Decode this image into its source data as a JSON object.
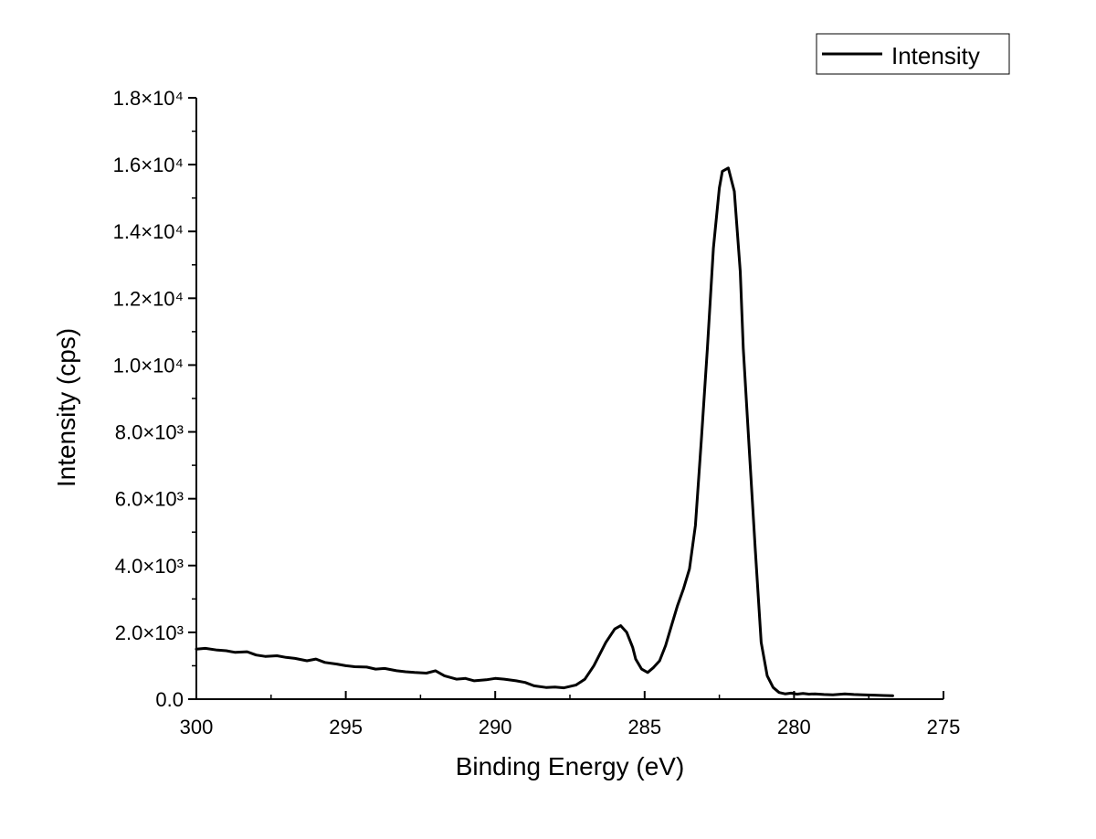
{
  "chart_data": {
    "type": "line",
    "xlabel": "Binding Energy (eV)",
    "ylabel": "Intensity (cps)",
    "xlim": [
      300,
      275
    ],
    "ylim": [
      0,
      18000
    ],
    "x_reversed": true,
    "grid": false,
    "legend_position": "top-right",
    "x_ticks": [
      {
        "value": 300,
        "label": "300"
      },
      {
        "value": 295,
        "label": "295"
      },
      {
        "value": 290,
        "label": "290"
      },
      {
        "value": 285,
        "label": "285"
      },
      {
        "value": 280,
        "label": "280"
      },
      {
        "value": 275,
        "label": "275"
      }
    ],
    "y_ticks": [
      {
        "value": 0,
        "label": "0.0"
      },
      {
        "value": 2000,
        "label": "2.0×10³"
      },
      {
        "value": 4000,
        "label": "4.0×10³"
      },
      {
        "value": 6000,
        "label": "6.0×10³"
      },
      {
        "value": 8000,
        "label": "8.0×10³"
      },
      {
        "value": 10000,
        "label": "1.0×10⁴"
      },
      {
        "value": 12000,
        "label": "1.2×10⁴"
      },
      {
        "value": 14000,
        "label": "1.4×10⁴"
      },
      {
        "value": 16000,
        "label": "1.6×10⁴"
      },
      {
        "value": 18000,
        "label": "1.8×10⁴"
      }
    ],
    "series": [
      {
        "name": "Intensity",
        "color": "#000000",
        "x": [
          300.0,
          299.7,
          299.3,
          299.0,
          298.7,
          298.3,
          298.0,
          297.7,
          297.3,
          297.0,
          296.7,
          296.3,
          296.0,
          295.7,
          295.3,
          295.0,
          294.7,
          294.3,
          294.0,
          293.7,
          293.3,
          293.0,
          292.7,
          292.3,
          292.0,
          291.7,
          291.3,
          291.0,
          290.7,
          290.3,
          290.0,
          289.7,
          289.3,
          289.0,
          288.7,
          288.3,
          288.0,
          287.7,
          287.3,
          287.0,
          286.7,
          286.3,
          286.0,
          285.8,
          285.6,
          285.4,
          285.3,
          285.1,
          284.9,
          284.7,
          284.5,
          284.3,
          284.1,
          283.9,
          283.7,
          283.5,
          283.3,
          283.1,
          282.9,
          282.7,
          282.5,
          282.4,
          282.2,
          282.0,
          281.8,
          281.7,
          281.5,
          281.3,
          281.1,
          280.9,
          280.7,
          280.5,
          280.3,
          280.1,
          279.9,
          279.7,
          279.5,
          279.3,
          279.0,
          278.7,
          278.3,
          278.0,
          277.7,
          277.3,
          277.0,
          276.7
        ],
        "y": [
          1500,
          1520,
          1470,
          1450,
          1400,
          1420,
          1320,
          1280,
          1300,
          1250,
          1220,
          1150,
          1200,
          1100,
          1050,
          1000,
          970,
          960,
          900,
          920,
          850,
          820,
          800,
          780,
          850,
          700,
          600,
          620,
          550,
          580,
          620,
          600,
          550,
          500,
          400,
          350,
          360,
          340,
          420,
          600,
          1000,
          1700,
          2100,
          2200,
          2000,
          1550,
          1200,
          900,
          800,
          950,
          1150,
          1600,
          2200,
          2800,
          3300,
          3900,
          5200,
          7800,
          10500,
          13500,
          15300,
          15800,
          15900,
          15200,
          12800,
          10500,
          7500,
          4500,
          1700,
          700,
          350,
          200,
          160,
          180,
          150,
          170,
          150,
          160,
          140,
          130,
          160,
          140,
          130,
          120,
          110,
          100
        ]
      }
    ]
  }
}
